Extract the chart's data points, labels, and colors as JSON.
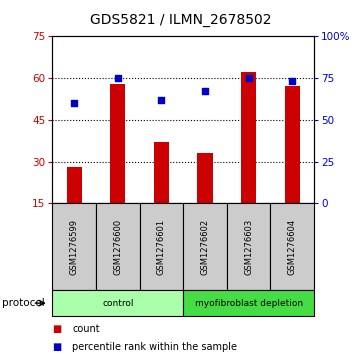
{
  "title": "GDS5821 / ILMN_2678502",
  "samples": [
    "GSM1276599",
    "GSM1276600",
    "GSM1276601",
    "GSM1276602",
    "GSM1276603",
    "GSM1276604"
  ],
  "counts": [
    28,
    58,
    37,
    33,
    62,
    57
  ],
  "percentile_ranks": [
    60,
    75,
    62,
    67,
    75,
    73
  ],
  "bar_color": "#cc0000",
  "square_color": "#0000cc",
  "left_ylim": [
    15,
    75
  ],
  "left_yticks": [
    15,
    30,
    45,
    60,
    75
  ],
  "right_ylim": [
    0,
    100
  ],
  "right_yticks": [
    0,
    25,
    50,
    75,
    100
  ],
  "right_yticklabels": [
    "0",
    "25",
    "50",
    "75",
    "100%"
  ],
  "groups": [
    {
      "label": "control",
      "start": 0,
      "end": 3,
      "color": "#aaffaa"
    },
    {
      "label": "myofibroblast depletion",
      "start": 3,
      "end": 6,
      "color": "#44dd44"
    }
  ],
  "protocol_label": "protocol",
  "legend_count_label": "count",
  "legend_pct_label": "percentile rank within the sample",
  "bar_width": 0.35,
  "sample_box_color": "#cccccc",
  "title_fontsize": 10,
  "tick_fontsize": 7.5,
  "legend_fontsize": 7
}
